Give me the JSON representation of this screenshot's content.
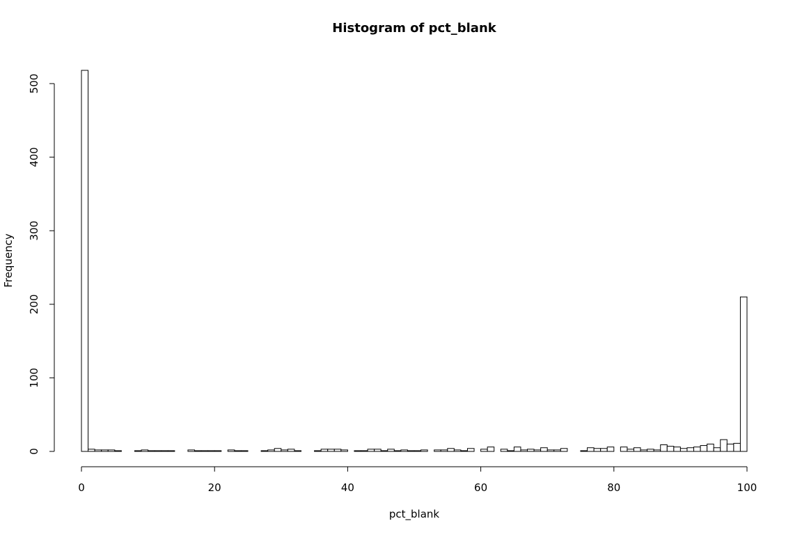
{
  "chart_data": {
    "type": "bar",
    "title": "Histogram of pct_blank",
    "xlabel": "pct_blank",
    "ylabel": "Frequency",
    "xlim": [
      0,
      100
    ],
    "ylim": [
      0,
      520
    ],
    "bin_width": 1,
    "x_ticks": [
      0,
      20,
      40,
      60,
      80,
      100
    ],
    "y_ticks": [
      0,
      100,
      200,
      300,
      400,
      500
    ],
    "grid": false,
    "legend": "none",
    "bar_fill": "#ffffff",
    "bar_stroke": "#000000",
    "values": [
      518,
      3,
      2,
      2,
      2,
      1,
      0,
      0,
      1,
      2,
      1,
      1,
      1,
      1,
      0,
      0,
      2,
      1,
      1,
      1,
      1,
      0,
      2,
      1,
      1,
      0,
      0,
      1,
      2,
      4,
      2,
      3,
      1,
      0,
      0,
      1,
      3,
      3,
      3,
      2,
      0,
      1,
      1,
      3,
      3,
      1,
      3,
      1,
      2,
      1,
      1,
      2,
      0,
      2,
      2,
      4,
      2,
      1,
      4,
      0,
      3,
      6,
      0,
      3,
      1,
      6,
      2,
      3,
      2,
      5,
      2,
      2,
      4,
      0,
      0,
      1,
      5,
      4,
      4,
      6,
      0,
      6,
      3,
      5,
      2,
      3,
      2,
      9,
      7,
      6,
      4,
      5,
      6,
      8,
      10,
      5,
      16,
      10,
      11,
      210
    ]
  }
}
